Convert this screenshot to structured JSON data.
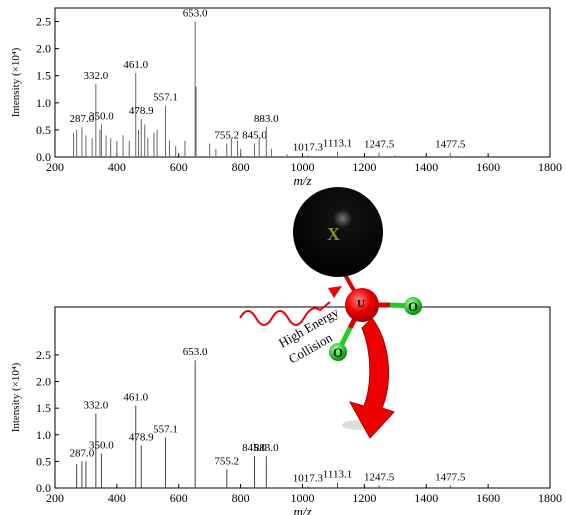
{
  "chart_data": [
    {
      "type": "stem",
      "ylabel": "Intensity (×10⁴)",
      "xlabel": "m/z",
      "xlim": [
        200,
        1800
      ],
      "xticks": [
        200,
        400,
        600,
        800,
        1000,
        1200,
        1400,
        1600,
        1800
      ],
      "ylim": [
        0,
        2.75
      ],
      "yticks": [
        {
          "value": 0,
          "label": "0.0"
        },
        0.5,
        {
          "value": 1,
          "label": "1.0"
        },
        1.5,
        {
          "value": 2,
          "label": "2.0"
        },
        2.5
      ],
      "series": [
        {
          "color": "#666666",
          "x": [
            260,
            270,
            287,
            300,
            320,
            332,
            345,
            350,
            365,
            380,
            400,
            420,
            440,
            461,
            470,
            478.9,
            490,
            500,
            520,
            530,
            557.1,
            570,
            590,
            620,
            653,
            656,
            700,
            720,
            755.2,
            770,
            790,
            800,
            845,
            860,
            883,
            900,
            950,
            1017.3,
            1113.1,
            1247.5,
            1300,
            1477.5,
            1500
          ],
          "values": [
            0.45,
            0.5,
            0.55,
            0.4,
            0.35,
            1.35,
            0.5,
            0.6,
            0.4,
            0.35,
            0.3,
            0.4,
            0.3,
            1.55,
            0.5,
            0.7,
            0.6,
            0.35,
            0.45,
            0.5,
            0.95,
            0.3,
            0.2,
            0.3,
            2.5,
            1.3,
            0.25,
            0.15,
            0.25,
            0.35,
            0.3,
            0.15,
            0.25,
            0.35,
            0.55,
            0.15,
            0.05,
            0.03,
            0.1,
            0.08,
            0.03,
            0.08,
            0.02
          ],
          "x_labels": [
            null,
            null,
            "287.0",
            null,
            null,
            "332.0",
            null,
            "350.0",
            null,
            null,
            null,
            null,
            null,
            "461.0",
            null,
            "478.9",
            null,
            null,
            null,
            null,
            "557.1",
            null,
            null,
            null,
            "653.0",
            null,
            null,
            null,
            "755.2",
            null,
            null,
            null,
            "845.0",
            null,
            "883.0",
            null,
            null,
            "1017.3",
            "1113.1",
            "1247.5",
            null,
            "1477.5",
            null
          ]
        }
      ]
    },
    {
      "type": "stem",
      "ylabel": "Intensity (×10⁴)",
      "xlabel": "m/z",
      "xlim": [
        200,
        1800
      ],
      "xticks": [
        200,
        400,
        600,
        800,
        1000,
        1200,
        1400,
        1600,
        1800
      ],
      "ylim": [
        0,
        3.4
      ],
      "yticks": [
        {
          "value": 0,
          "label": "0.0"
        },
        0.5,
        {
          "value": 1,
          "label": "1.0"
        },
        1.5,
        {
          "value": 2,
          "label": "2.0"
        },
        2.5
      ],
      "series": [
        {
          "color": "#444444",
          "x": [
            270,
            287,
            300,
            332,
            350,
            461,
            478.9,
            557.1,
            653,
            755.2,
            845,
            883,
            1017.3,
            1113.1,
            1247.5,
            1477.5
          ],
          "values": [
            0.45,
            0.5,
            0.5,
            1.4,
            0.65,
            1.55,
            0.8,
            0.95,
            2.4,
            0.35,
            0.6,
            0.6,
            0.03,
            0.1,
            0.05,
            0.05
          ],
          "x_labels": [
            null,
            "287.0",
            null,
            "332.0",
            "350.0",
            "461.0",
            "478.9",
            "557.1",
            "653.0",
            "755.2",
            "845.0",
            "883.0",
            "1017.3",
            "1113.1",
            "1247.5",
            "1477.5"
          ]
        }
      ]
    }
  ],
  "diagram": {
    "atoms": [
      "X",
      "U",
      "O",
      "O"
    ],
    "caption": [
      "High Energy",
      "Collision"
    ]
  }
}
